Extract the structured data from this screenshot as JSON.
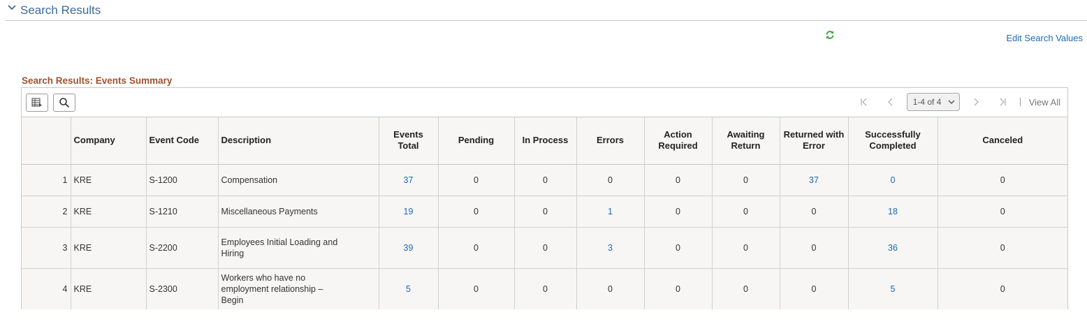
{
  "section": {
    "title": "Search Results"
  },
  "edit_search_label": "Edit Search Values",
  "grid": {
    "title": "Search Results: Events Summary",
    "pagination": {
      "range": "1-4 of 4",
      "view_all": "View All"
    },
    "headers": [
      "",
      "Company",
      "Event Code",
      "Description",
      "Events Total",
      "Pending",
      "In Process",
      "Errors",
      "Action Required",
      "Awaiting Return",
      "Returned with Error",
      "Successfully Completed",
      "Canceled"
    ],
    "rows": [
      {
        "num": "1",
        "company": "KRE",
        "event_code": "S-1200",
        "description": "Compensation",
        "events_total": "37",
        "pending": "0",
        "in_process": "0",
        "errors": "0",
        "action_required": "0",
        "awaiting_return": "0",
        "returned_with_error": "37",
        "successfully_completed": "0",
        "canceled": "0"
      },
      {
        "num": "2",
        "company": "KRE",
        "event_code": "S-1210",
        "description": "Miscellaneous Payments",
        "events_total": "19",
        "pending": "0",
        "in_process": "0",
        "errors": "1",
        "action_required": "0",
        "awaiting_return": "0",
        "returned_with_error": "0",
        "successfully_completed": "18",
        "canceled": "0"
      },
      {
        "num": "3",
        "company": "KRE",
        "event_code": "S-2200",
        "description": "Employees Initial Loading and Hiring",
        "events_total": "39",
        "pending": "0",
        "in_process": "0",
        "errors": "3",
        "action_required": "0",
        "awaiting_return": "0",
        "returned_with_error": "0",
        "successfully_completed": "36",
        "canceled": "0"
      },
      {
        "num": "4",
        "company": "KRE",
        "event_code": "S-2300",
        "description": "Workers who have no employment relationship  – Begin",
        "events_total": "5",
        "pending": "0",
        "in_process": "0",
        "errors": "0",
        "action_required": "0",
        "awaiting_return": "0",
        "returned_with_error": "0",
        "successfully_completed": "5",
        "canceled": "0"
      }
    ]
  },
  "colors": {
    "link": "#1d6bb3",
    "section_title": "#3d6a96",
    "grid_title": "#a0522d",
    "refresh": "#3aa03a"
  },
  "icons": [
    "chevron-down-icon",
    "refresh-icon",
    "personalize-grid-icon",
    "search-icon",
    "first-page-icon",
    "previous-page-icon",
    "next-page-icon",
    "last-page-icon"
  ]
}
